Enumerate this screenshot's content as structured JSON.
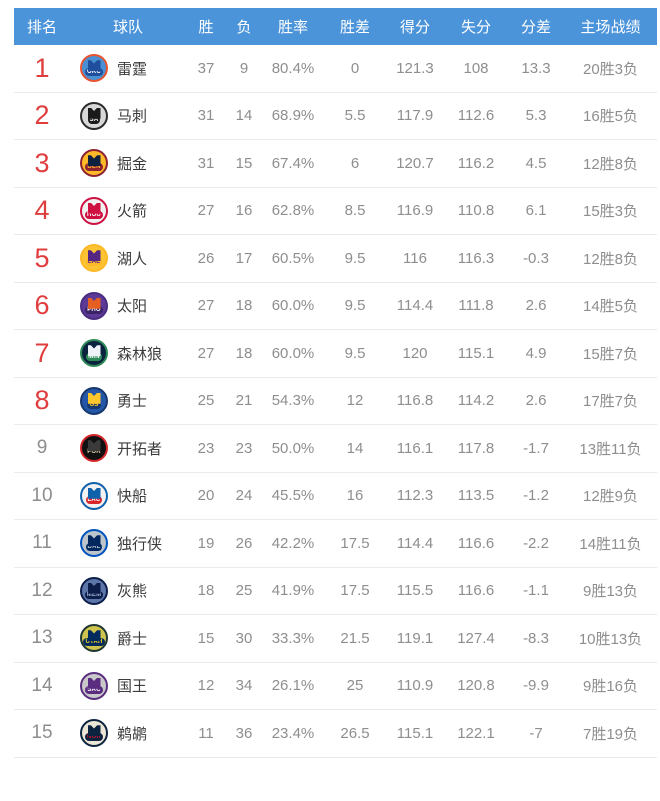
{
  "colors": {
    "header_bg": "#4b94da",
    "header_text": "#ffffff",
    "rank_highlight": "#e03e3e",
    "rank_normal": "#8e8e8e",
    "stat_text": "#8e8e8e",
    "team_text": "#3c3c3c",
    "divider": "#ebebeb"
  },
  "header": {
    "columns": [
      "排名",
      "球队",
      "胜",
      "负",
      "胜率",
      "胜差",
      "得分",
      "失分",
      "分差",
      "主场战绩"
    ]
  },
  "standings": [
    {
      "rank": "1",
      "team": "雷霆",
      "abbr": "OKC",
      "wins": "37",
      "losses": "9",
      "win_pct": "80.4%",
      "games_behind": "0",
      "points_for": "121.3",
      "points_against": "108",
      "point_diff": "13.3",
      "home_record": "20胜3负",
      "highlight": true,
      "logo": {
        "ring": "#e8542f",
        "inner": "#4a90d5",
        "jersey": "#1f4f9c",
        "abbr_bg": "#1f4f9c",
        "abbr_color": "#ffffff"
      }
    },
    {
      "rank": "2",
      "team": "马刺",
      "abbr": "SA",
      "wins": "31",
      "losses": "14",
      "win_pct": "68.9%",
      "games_behind": "5.5",
      "points_for": "117.9",
      "points_against": "112.6",
      "point_diff": "5.3",
      "home_record": "16胜5负",
      "highlight": true,
      "logo": {
        "ring": "#2b2b2b",
        "inner": "#d8d8d8",
        "jersey": "#1a1a1a",
        "abbr_bg": "#1a1a1a",
        "abbr_color": "#ffffff"
      }
    },
    {
      "rank": "3",
      "team": "掘金",
      "abbr": "DEN",
      "wins": "31",
      "losses": "15",
      "win_pct": "67.4%",
      "games_behind": "6",
      "points_for": "120.7",
      "points_against": "116.2",
      "point_diff": "4.5",
      "home_record": "12胜8负",
      "highlight": true,
      "logo": {
        "ring": "#8b2131",
        "inner": "#fdb927",
        "jersey": "#0e2240",
        "abbr_bg": "#8b2131",
        "abbr_color": "#fdb927"
      }
    },
    {
      "rank": "4",
      "team": "火箭",
      "abbr": "HOU",
      "wins": "27",
      "losses": "16",
      "win_pct": "62.8%",
      "games_behind": "8.5",
      "points_for": "116.9",
      "points_against": "110.8",
      "point_diff": "6.1",
      "home_record": "15胜3负",
      "highlight": true,
      "logo": {
        "ring": "#ce1141",
        "inner": "#f0f0f0",
        "jersey": "#ce1141",
        "abbr_bg": "#ce1141",
        "abbr_color": "#ffffff"
      }
    },
    {
      "rank": "5",
      "team": "湖人",
      "abbr": "LAL",
      "wins": "26",
      "losses": "17",
      "win_pct": "60.5%",
      "games_behind": "9.5",
      "points_for": "116",
      "points_against": "116.3",
      "point_diff": "-0.3",
      "home_record": "12胜8负",
      "highlight": true,
      "logo": {
        "ring": "#fdb927",
        "inner": "#fcc332",
        "jersey": "#552583",
        "abbr_bg": "#fdb927",
        "abbr_color": "#552583"
      }
    },
    {
      "rank": "6",
      "team": "太阳",
      "abbr": "PHO",
      "wins": "27",
      "losses": "18",
      "win_pct": "60.0%",
      "games_behind": "9.5",
      "points_for": "114.4",
      "points_against": "111.8",
      "point_diff": "2.6",
      "home_record": "14胜5负",
      "highlight": true,
      "logo": {
        "ring": "#4a2d82",
        "inner": "#5c3a96",
        "jersey": "#e56020",
        "abbr_bg": "#3a2366",
        "abbr_color": "#ffffff"
      }
    },
    {
      "rank": "7",
      "team": "森林狼",
      "abbr": "MIN",
      "wins": "27",
      "losses": "18",
      "win_pct": "60.0%",
      "games_behind": "9.5",
      "points_for": "120",
      "points_against": "115.1",
      "point_diff": "4.9",
      "home_record": "15胜7负",
      "highlight": true,
      "logo": {
        "ring": "#2e8b57",
        "inner": "#0c2340",
        "jersey": "#eef3f8",
        "abbr_bg": "#2e8b57",
        "abbr_color": "#ffffff"
      }
    },
    {
      "rank": "8",
      "team": "勇士",
      "abbr": "GS",
      "wins": "25",
      "losses": "21",
      "win_pct": "54.3%",
      "games_behind": "12",
      "points_for": "116.8",
      "points_against": "114.2",
      "point_diff": "2.6",
      "home_record": "17胜7负",
      "highlight": true,
      "logo": {
        "ring": "#16386e",
        "inner": "#2457a8",
        "jersey": "#ffc72c",
        "abbr_bg": "#16386e",
        "abbr_color": "#ffc72c"
      }
    },
    {
      "rank": "9",
      "team": "开拓者",
      "abbr": "POR",
      "wins": "23",
      "losses": "23",
      "win_pct": "50.0%",
      "games_behind": "14",
      "points_for": "116.1",
      "points_against": "117.8",
      "point_diff": "-1.7",
      "home_record": "13胜11负",
      "highlight": false,
      "logo": {
        "ring": "#d6262b",
        "inner": "#111111",
        "jersey": "#3a3a3a",
        "abbr_bg": "#111111",
        "abbr_color": "#e8d8b0"
      }
    },
    {
      "rank": "10",
      "team": "快船",
      "abbr": "LAC",
      "wins": "20",
      "losses": "24",
      "win_pct": "45.5%",
      "games_behind": "16",
      "points_for": "112.3",
      "points_against": "113.5",
      "point_diff": "-1.2",
      "home_record": "12胜9负",
      "highlight": false,
      "logo": {
        "ring": "#1061ac",
        "inner": "#f2f2f2",
        "jersey": "#1061ac",
        "abbr_bg": "#d6262b",
        "abbr_color": "#ffffff"
      }
    },
    {
      "rank": "11",
      "team": "独行侠",
      "abbr": "DAL",
      "wins": "19",
      "losses": "26",
      "win_pct": "42.2%",
      "games_behind": "17.5",
      "points_for": "114.4",
      "points_against": "116.6",
      "point_diff": "-2.2",
      "home_record": "14胜11负",
      "highlight": false,
      "logo": {
        "ring": "#0053bc",
        "inner": "#bcc4cc",
        "jersey": "#00275e",
        "abbr_bg": "#00275e",
        "abbr_color": "#b8c4ce"
      }
    },
    {
      "rank": "12",
      "team": "灰熊",
      "abbr": "MEM",
      "wins": "18",
      "losses": "25",
      "win_pct": "41.9%",
      "games_behind": "17.5",
      "points_for": "115.5",
      "points_against": "116.6",
      "point_diff": "-1.1",
      "home_record": "9胜13负",
      "highlight": false,
      "logo": {
        "ring": "#0c1d49",
        "inner": "#5d76a9",
        "jersey": "#0c1d49",
        "abbr_bg": "#0c1d49",
        "abbr_color": "#9eb3d8"
      }
    },
    {
      "rank": "13",
      "team": "爵士",
      "abbr": "UTAH",
      "wins": "15",
      "losses": "30",
      "win_pct": "33.3%",
      "games_behind": "21.5",
      "points_for": "119.1",
      "points_against": "127.4",
      "point_diff": "-8.3",
      "home_record": "10胜13负",
      "highlight": false,
      "logo": {
        "ring": "#1f3731",
        "inner": "#cfc54e",
        "jersey": "#002b5c",
        "abbr_bg": "#002b5c",
        "abbr_color": "#f9d21a"
      }
    },
    {
      "rank": "14",
      "team": "国王",
      "abbr": "SAC",
      "wins": "12",
      "losses": "34",
      "win_pct": "26.1%",
      "games_behind": "25",
      "points_for": "110.9",
      "points_against": "120.8",
      "point_diff": "-9.9",
      "home_record": "9胜16负",
      "highlight": false,
      "logo": {
        "ring": "#5a2d81",
        "inner": "#c9c9c9",
        "jersey": "#5a2d81",
        "abbr_bg": "#5a2d81",
        "abbr_color": "#ffffff"
      }
    },
    {
      "rank": "15",
      "team": "鹈鹕",
      "abbr": "NOR",
      "wins": "11",
      "losses": "36",
      "win_pct": "23.4%",
      "games_behind": "26.5",
      "points_for": "115.1",
      "points_against": "122.1",
      "point_diff": "-7",
      "home_record": "7胜19负",
      "highlight": false,
      "logo": {
        "ring": "#0c2340",
        "inner": "#ece6d6",
        "jersey": "#0c2340",
        "abbr_bg": "#0c2340",
        "abbr_color": "#c8102e"
      }
    }
  ]
}
